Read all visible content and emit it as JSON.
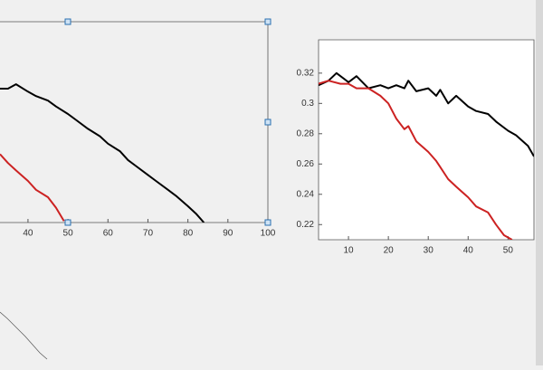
{
  "chart_data": [
    {
      "type": "line",
      "xlim": [
        33,
        100
      ],
      "ylim": [
        0.21,
        0.345
      ],
      "xticks": [
        40,
        50,
        60,
        70,
        80,
        90,
        100
      ],
      "series": [
        {
          "color": "#000000",
          "x": [
            33,
            35,
            37,
            40,
            42,
            45,
            47,
            50,
            52,
            55,
            58,
            60,
            63,
            65,
            67,
            70,
            72,
            75,
            77,
            80,
            82,
            84
          ],
          "values": [
            0.3,
            0.3,
            0.303,
            0.298,
            0.295,
            0.292,
            0.288,
            0.283,
            0.279,
            0.273,
            0.268,
            0.263,
            0.258,
            0.252,
            0.248,
            0.242,
            0.238,
            0.232,
            0.228,
            0.221,
            0.216,
            0.21
          ]
        },
        {
          "color": "#cc2222",
          "x": [
            33,
            35,
            37,
            40,
            42,
            45,
            47,
            49
          ],
          "values": [
            0.256,
            0.25,
            0.245,
            0.238,
            0.232,
            0.227,
            0.22,
            0.211
          ]
        }
      ]
    },
    {
      "type": "line",
      "xlim": [
        2.5,
        56.5
      ],
      "ylim": [
        0.21,
        0.342
      ],
      "xticks": [
        10,
        20,
        30,
        40,
        50
      ],
      "yticks": [
        0.22,
        0.24,
        0.26,
        0.28,
        0.3,
        0.32
      ],
      "series": [
        {
          "color": "#000000",
          "x": [
            2.5,
            5,
            7,
            10,
            12,
            15,
            18,
            20,
            22,
            24,
            25,
            27,
            30,
            32,
            33,
            35,
            37,
            40,
            42,
            45,
            47,
            50,
            52,
            55,
            56.5
          ],
          "values": [
            0.312,
            0.315,
            0.32,
            0.314,
            0.318,
            0.31,
            0.312,
            0.31,
            0.312,
            0.31,
            0.315,
            0.308,
            0.31,
            0.305,
            0.309,
            0.3,
            0.305,
            0.298,
            0.295,
            0.293,
            0.288,
            0.282,
            0.279,
            0.272,
            0.265
          ]
        },
        {
          "color": "#cc2222",
          "x": [
            2.5,
            5,
            8,
            10,
            12,
            15,
            18,
            20,
            22,
            24,
            25,
            27,
            30,
            32,
            33,
            35,
            37,
            40,
            42,
            45,
            47,
            49,
            51
          ],
          "values": [
            0.313,
            0.315,
            0.313,
            0.313,
            0.31,
            0.31,
            0.305,
            0.3,
            0.29,
            0.283,
            0.285,
            0.275,
            0.268,
            0.262,
            0.258,
            0.25,
            0.245,
            0.238,
            0.232,
            0.228,
            0.22,
            0.213,
            0.21
          ]
        }
      ]
    }
  ]
}
